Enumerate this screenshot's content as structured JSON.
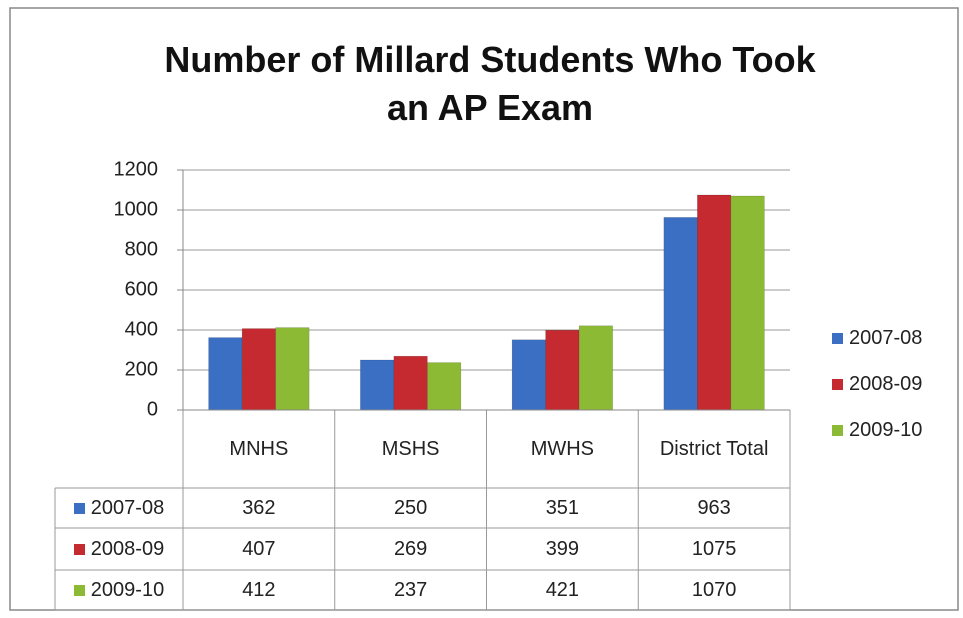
{
  "chart_data": {
    "type": "bar",
    "title": "Number of Millard Students Who Took an AP Exam",
    "categories": [
      "MNHS",
      "MSHS",
      "MWHS",
      "District Total"
    ],
    "series": [
      {
        "name": "2007-08",
        "color": "#3a6fc4",
        "values": [
          362,
          250,
          351,
          963
        ]
      },
      {
        "name": "2008-09",
        "color": "#c42a30",
        "values": [
          407,
          269,
          399,
          1075
        ]
      },
      {
        "name": "2009-10",
        "color": "#8dba34",
        "values": [
          412,
          237,
          421,
          1070
        ]
      }
    ],
    "ylim": [
      0,
      1200
    ],
    "yticks": [
      0,
      200,
      400,
      600,
      800,
      1000,
      1200
    ],
    "grid": true,
    "legend": "right"
  }
}
